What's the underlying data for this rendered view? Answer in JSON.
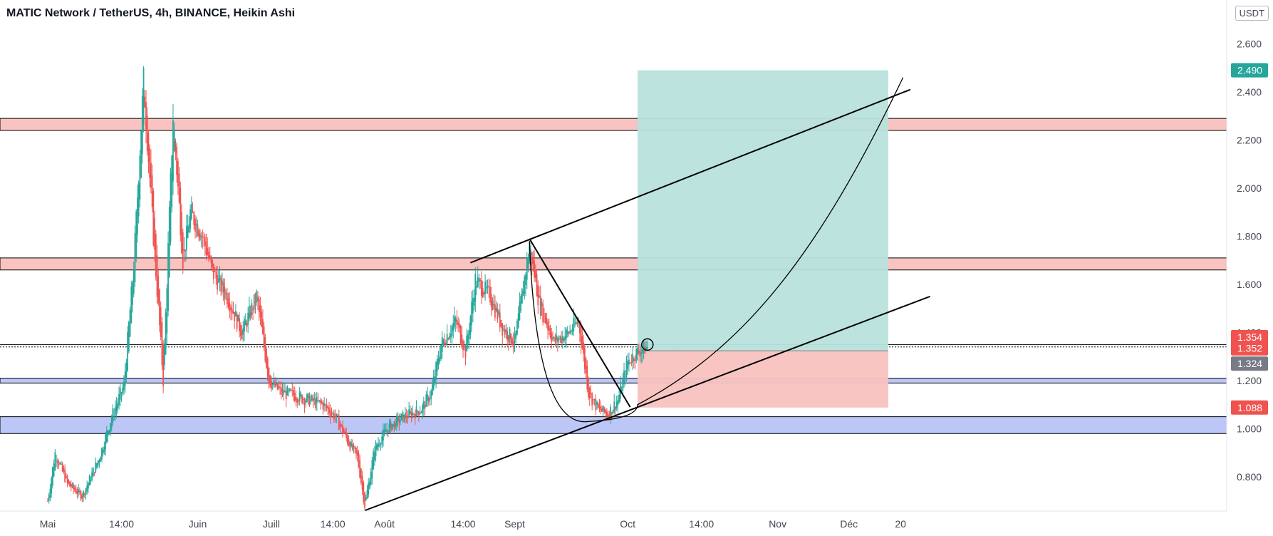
{
  "title": "MATIC Network / TetherUS, 4h, BINANCE, Heikin Ashi",
  "currency_badge": "USDT",
  "colors": {
    "up": "#26a69a",
    "down": "#ef5350",
    "resistance_zone": "#f8c3c0",
    "support_zone": "#bdc7f7",
    "target_zone": "#b8e1dc",
    "stop_zone": "#f8c2c0",
    "target_label": "#26a69a",
    "stop_label": "#ef5350",
    "current_label": "#787b86",
    "trendline": "#000000"
  },
  "chart_data": {
    "type": "candlestick",
    "symbol": "MATIC Network / TetherUS",
    "interval": "4h",
    "exchange": "BINANCE",
    "style": "Heikin Ashi",
    "yaxis": {
      "ticks": [
        "2.600",
        "2.400",
        "2.200",
        "2.000",
        "1.800",
        "1.600",
        "1.400",
        "1.200",
        "1.000",
        "0.800"
      ],
      "tick_values": [
        2.6,
        2.4,
        2.2,
        2.0,
        1.8,
        1.6,
        1.4,
        1.2,
        1.0,
        0.8
      ]
    },
    "xaxis": {
      "tick_labels": [
        "Mai",
        "14:00",
        "Juin",
        "Juill",
        "14:00",
        "Août",
        "14:00",
        "Sept",
        "Oct",
        "14:00",
        "Nov",
        "Déc",
        "20"
      ],
      "tick_days": [
        0,
        30,
        61,
        91,
        116,
        137,
        169,
        190,
        236,
        266,
        297,
        326,
        347
      ]
    },
    "price_labels": [
      {
        "text": "2.490",
        "value": 2.49,
        "kind": "target"
      },
      {
        "text": "1.354",
        "value": 1.354,
        "kind": "stop"
      },
      {
        "text": "1.352",
        "value": 1.352,
        "kind": "stop"
      },
      {
        "text": "1.324",
        "value": 1.324,
        "kind": "current"
      },
      {
        "text": "1.088",
        "value": 1.088,
        "kind": "stop"
      }
    ],
    "zones": [
      {
        "kind": "resistance",
        "low": 2.24,
        "high": 2.29
      },
      {
        "kind": "resistance",
        "low": 1.66,
        "high": 1.71
      },
      {
        "kind": "support",
        "low": 1.19,
        "high": 1.21
      },
      {
        "kind": "support",
        "low": 0.98,
        "high": 1.05
      }
    ],
    "horizontal_lines": [
      1.35,
      1.34
    ],
    "position": {
      "entry": 1.324,
      "target": 2.49,
      "stop": 1.088,
      "start_day": 240,
      "end_day": 342
    },
    "trendlines": [
      {
        "from": [
          172,
          1.69
        ],
        "to": [
          351,
          2.41
        ]
      },
      {
        "from": [
          129,
          0.66
        ],
        "to": [
          359,
          1.55
        ]
      },
      {
        "from": [
          196,
          1.79
        ],
        "to": [
          237,
          1.09
        ]
      }
    ],
    "cup_curve": {
      "start": [
        196,
        1.78
      ],
      "bottom": [
        220,
        1.03
      ],
      "mid": [
        240,
        1.1
      ],
      "end": [
        348,
        2.46
      ]
    },
    "price_path": [
      [
        0,
        0.7
      ],
      [
        3,
        0.9
      ],
      [
        8,
        0.77
      ],
      [
        14,
        0.72
      ],
      [
        21,
        0.88
      ],
      [
        26,
        1.05
      ],
      [
        31,
        1.18
      ],
      [
        35,
        1.68
      ],
      [
        39,
        2.45
      ],
      [
        43,
        1.8
      ],
      [
        47,
        1.2
      ],
      [
        51,
        2.3
      ],
      [
        55,
        1.7
      ],
      [
        58,
        1.9
      ],
      [
        63,
        1.8
      ],
      [
        67,
        1.65
      ],
      [
        73,
        1.55
      ],
      [
        79,
        1.4
      ],
      [
        85,
        1.55
      ],
      [
        90,
        1.2
      ],
      [
        95,
        1.15
      ],
      [
        100,
        1.14
      ],
      [
        106,
        1.12
      ],
      [
        112,
        1.1
      ],
      [
        117,
        1.05
      ],
      [
        122,
        0.95
      ],
      [
        126,
        0.88
      ],
      [
        129,
        0.68
      ],
      [
        133,
        0.92
      ],
      [
        138,
        1.0
      ],
      [
        145,
        1.05
      ],
      [
        152,
        1.08
      ],
      [
        156,
        1.15
      ],
      [
        160,
        1.35
      ],
      [
        166,
        1.45
      ],
      [
        170,
        1.32
      ],
      [
        174,
        1.62
      ],
      [
        180,
        1.55
      ],
      [
        185,
        1.42
      ],
      [
        190,
        1.36
      ],
      [
        196,
        1.76
      ],
      [
        200,
        1.52
      ],
      [
        206,
        1.36
      ],
      [
        212,
        1.4
      ],
      [
        216,
        1.45
      ],
      [
        220,
        1.15
      ],
      [
        224,
        1.08
      ],
      [
        228,
        1.06
      ],
      [
        232,
        1.12
      ],
      [
        236,
        1.28
      ],
      [
        240,
        1.32
      ],
      [
        244,
        1.34
      ]
    ],
    "grid": false,
    "legend": "none"
  }
}
